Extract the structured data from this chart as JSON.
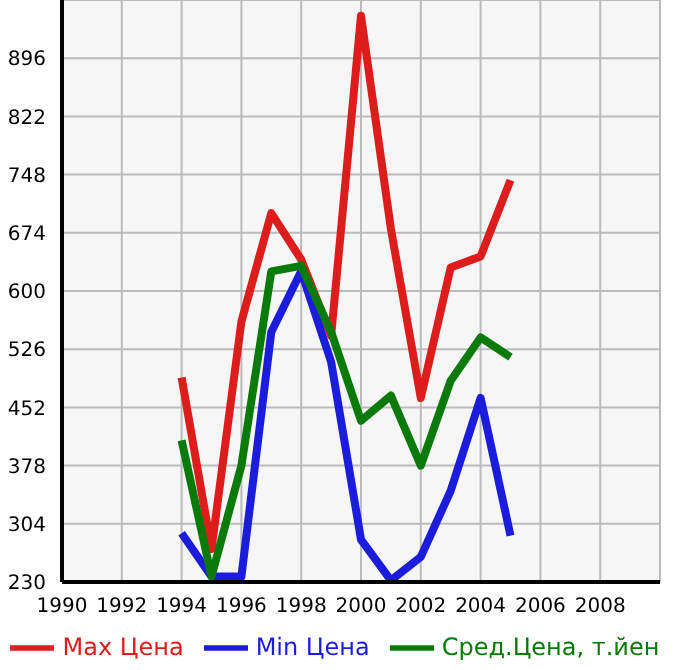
{
  "chart_data": {
    "type": "line",
    "x": [
      1994,
      1995,
      1996,
      1997,
      1998,
      1999,
      2000,
      2001,
      2002,
      2003,
      2004,
      2005
    ],
    "series": [
      {
        "name": "Max Цена",
        "color": "#dd1c1c",
        "values": [
          490,
          272,
          561,
          699,
          640,
          543,
          950,
          679,
          464,
          630,
          644,
          741
        ]
      },
      {
        "name": "Min Цена",
        "color": "#1c1cdd",
        "values": [
          292,
          237,
          237,
          548,
          625,
          510,
          284,
          232,
          262,
          346,
          464,
          289
        ]
      },
      {
        "name": "Сред.Цена, т.йен",
        "color": "#0a7a0a",
        "values": [
          410,
          237,
          378,
          625,
          632,
          548,
          435,
          467,
          378,
          486,
          541,
          516
        ]
      }
    ],
    "xlim": [
      1990,
      2010
    ],
    "xticks": [
      1990,
      1992,
      1994,
      1996,
      1998,
      2000,
      2002,
      2004,
      2006,
      2008
    ],
    "ylim": [
      230,
      970
    ],
    "yticks": [
      230,
      304,
      378,
      452,
      526,
      600,
      674,
      748,
      822,
      896,
      {
        "value": 970,
        "label": null
      }
    ],
    "grid": true,
    "legend": "bottom",
    "marker": "none",
    "line_style": "solid"
  }
}
